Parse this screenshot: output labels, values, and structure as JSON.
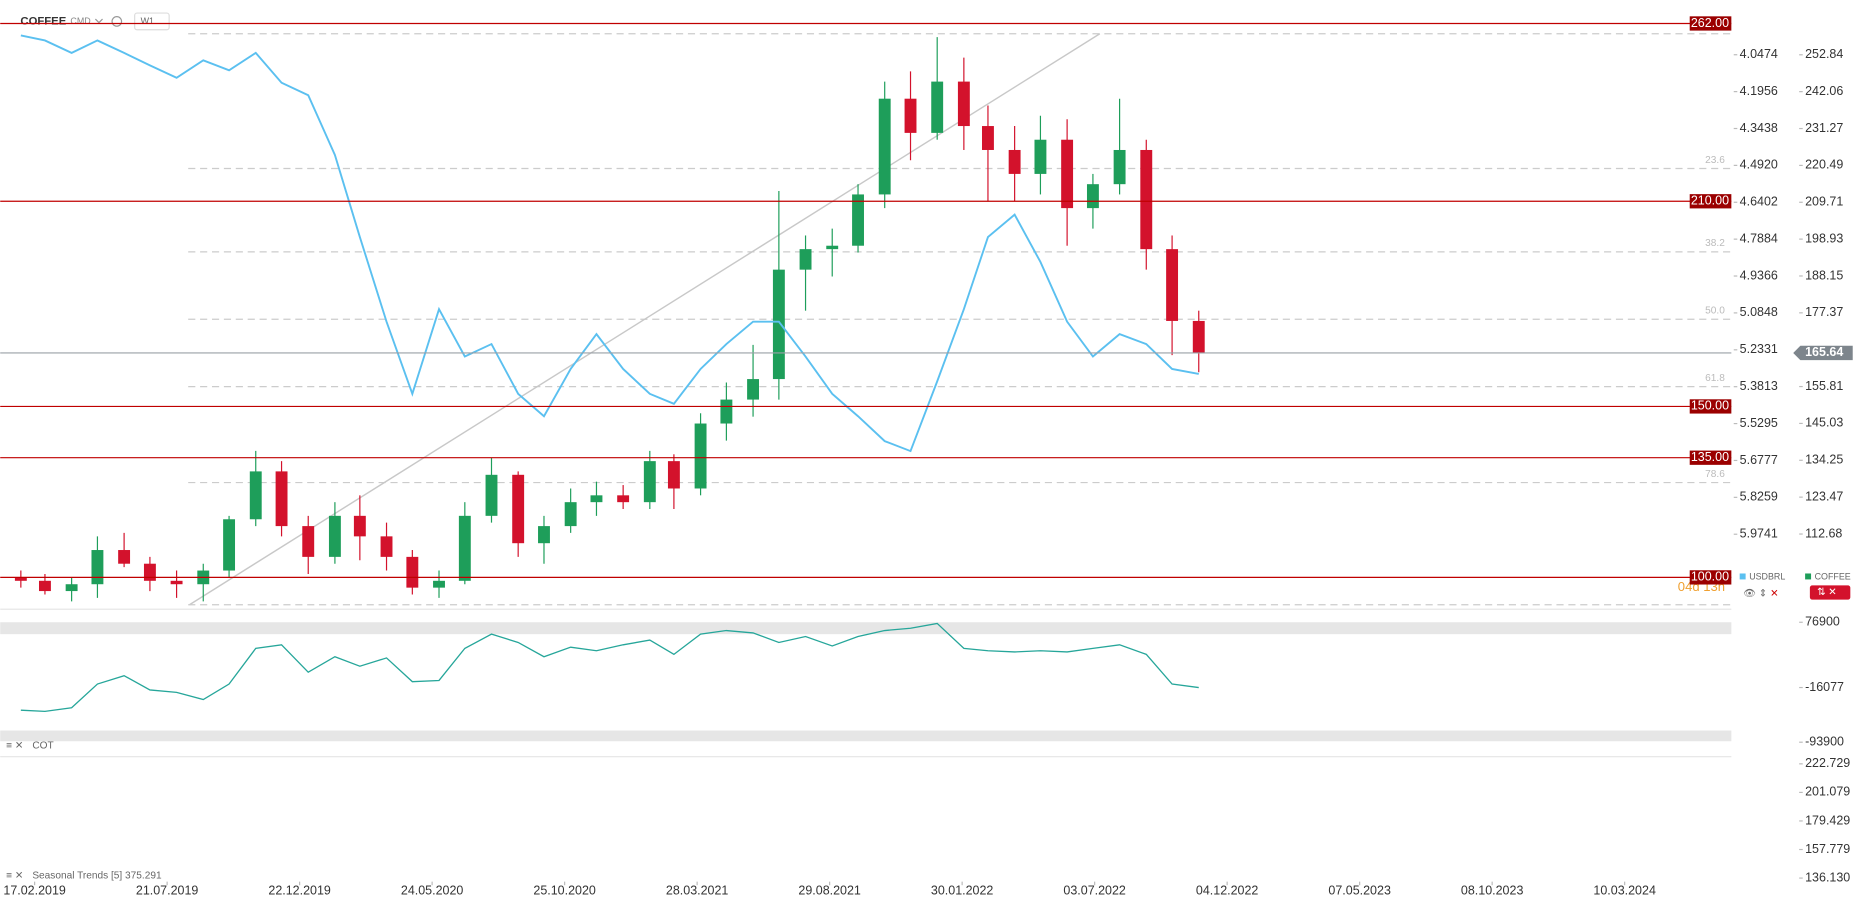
{
  "header": {
    "symbol": "COFFEE",
    "kind": "CMD",
    "timeframe": "W1",
    "countdown": "04d 13h"
  },
  "chart_data": [
    {
      "type": "candlestick",
      "x": [
        "01.02.2019",
        "01.03.2019",
        "01.04.2019",
        "01.05.2019",
        "01.06.2019",
        "01.07.2019",
        "01.08.2019",
        "01.09.2019",
        "01.10.2019",
        "01.11.2019",
        "01.12.2019",
        "01.01.2020",
        "01.02.2020",
        "01.03.2020",
        "01.04.2020",
        "01.05.2020",
        "01.06.2020",
        "01.07.2020",
        "01.08.2020",
        "01.09.2020",
        "01.10.2020",
        "01.11.2020",
        "01.12.2020",
        "01.01.2021",
        "01.02.2021",
        "01.03.2021",
        "01.04.2021",
        "01.05.2021",
        "01.06.2021",
        "01.07.2021",
        "01.08.2021",
        "01.09.2021",
        "01.10.2021",
        "01.11.2021",
        "01.12.2021",
        "01.01.2022",
        "01.02.2022",
        "01.03.2022",
        "01.04.2022",
        "01.05.2022",
        "01.06.2022",
        "01.07.2022",
        "01.08.2022",
        "01.09.2022",
        "01.10.2022",
        "01.11.2022"
      ],
      "xlim": [
        "08.01.2019",
        "12.07.2024"
      ],
      "xticks": [
        "17.02.2019",
        "21.07.2019",
        "22.12.2019",
        "24.05.2020",
        "25.10.2020",
        "28.03.2021",
        "29.08.2021",
        "30.01.2022",
        "03.07.2022",
        "04.12.2022",
        "07.05.2023",
        "08.10.2023",
        "10.03.2024"
      ],
      "series": [
        {
          "name": "COFFEE",
          "up_color": "#1e9e5a",
          "down_color": "#d3122c",
          "open": [
            100,
            99,
            96,
            98,
            108,
            104,
            99,
            98,
            102,
            117,
            131,
            115,
            106,
            118,
            112,
            106,
            97,
            99,
            118,
            130,
            110,
            115,
            122,
            124,
            122,
            134,
            126,
            145,
            152,
            158,
            190,
            196,
            197,
            212,
            240,
            230,
            245,
            232,
            225,
            218,
            228,
            208,
            215,
            225,
            196,
            175
          ],
          "high": [
            102,
            101,
            100,
            112,
            113,
            106,
            102,
            104,
            118,
            137,
            134,
            118,
            122,
            124,
            116,
            108,
            102,
            122,
            135,
            131,
            118,
            126,
            128,
            127,
            137,
            136,
            148,
            157,
            168,
            213,
            200,
            202,
            215,
            245,
            248,
            258,
            252,
            238,
            232,
            235,
            234,
            218,
            240,
            228,
            200,
            178
          ],
          "low": [
            97,
            95,
            93,
            94,
            103,
            96,
            94,
            93,
            100,
            115,
            112,
            101,
            104,
            105,
            102,
            95,
            94,
            98,
            116,
            106,
            104,
            113,
            118,
            120,
            120,
            120,
            124,
            140,
            147,
            152,
            178,
            188,
            195,
            208,
            222,
            228,
            225,
            210,
            210,
            212,
            197,
            202,
            212,
            190,
            165,
            160
          ],
          "close": [
            99,
            96,
            98,
            108,
            104,
            99,
            98,
            102,
            117,
            131,
            115,
            106,
            118,
            112,
            106,
            97,
            99,
            118,
            130,
            110,
            115,
            122,
            124,
            122,
            134,
            126,
            145,
            152,
            158,
            190,
            196,
            197,
            212,
            240,
            230,
            245,
            232,
            225,
            218,
            228,
            208,
            215,
            225,
            196,
            175,
            165.64
          ]
        },
        {
          "name": "USDBRL",
          "axis": "y2",
          "color": "#5bc0f0",
          "values": [
            3.97,
            3.99,
            4.04,
            3.99,
            4.04,
            4.09,
            4.14,
            4.07,
            4.11,
            4.04,
            4.16,
            4.21,
            4.45,
            4.78,
            5.12,
            5.41,
            5.07,
            5.26,
            5.21,
            5.41,
            5.5,
            5.31,
            5.17,
            5.31,
            5.41,
            5.45,
            5.31,
            5.21,
            5.12,
            5.12,
            5.26,
            5.41,
            5.5,
            5.6,
            5.64,
            5.36,
            5.07,
            4.78,
            4.69,
            4.88,
            5.12,
            5.26,
            5.17,
            5.21,
            5.31,
            5.33
          ]
        }
      ],
      "ylim": [
        91.4,
        262.6
      ],
      "yticks": [
        252.84,
        242.06,
        231.27,
        220.49,
        209.71,
        198.93,
        188.15,
        177.37,
        155.81,
        145.03,
        134.25,
        123.47,
        112.68
      ],
      "y2lim": [
        6.2657,
        3.9135
      ],
      "y2ticks": [
        4.0474,
        4.1956,
        4.3438,
        {
          "value": 4.492,
          "label": "4.4920"
        },
        4.6402,
        4.7884,
        4.9366,
        5.0848,
        5.2331,
        5.3813,
        5.5295,
        5.6777,
        5.8259,
        5.9741
      ],
      "levels": [
        {
          "value": 262,
          "label": "262.00"
        },
        {
          "value": 210,
          "label": "210.00"
        },
        {
          "value": 150,
          "label": "150.00"
        },
        {
          "value": 135,
          "label": "135.00"
        },
        {
          "value": 100,
          "label": "100.00"
        }
      ],
      "level_color": "#c00000",
      "last_price": 165.64,
      "fibonacci": {
        "from": 259,
        "to": 92,
        "levels": [
          23.6,
          38.2,
          {
            "value": 50,
            "label": "50.0"
          },
          61.8,
          78.6
        ]
      },
      "trendline": {
        "x": [
          "16.08.2019",
          "09.07.2022"
        ],
        "y": [
          92,
          259
        ]
      },
      "legend": "right"
    },
    {
      "type": "line",
      "name": "COT",
      "x": [
        "01.02.2019",
        "01.03.2019",
        "01.04.2019",
        "01.05.2019",
        "01.06.2019",
        "01.07.2019",
        "01.08.2019",
        "01.09.2019",
        "01.10.2019",
        "01.11.2019",
        "01.12.2019",
        "01.01.2020",
        "01.02.2020",
        "01.03.2020",
        "01.04.2020",
        "01.05.2020",
        "01.06.2020",
        "01.07.2020",
        "01.08.2020",
        "01.09.2020",
        "01.10.2020",
        "01.11.2020",
        "01.12.2020",
        "01.01.2021",
        "01.02.2021",
        "01.03.2021",
        "01.04.2021",
        "01.05.2021",
        "01.06.2021",
        "01.07.2021",
        "01.08.2021",
        "01.09.2021",
        "01.10.2021",
        "01.11.2021",
        "01.12.2021",
        "01.01.2022",
        "01.02.2022",
        "01.03.2022",
        "01.04.2022",
        "01.05.2022",
        "01.06.2022",
        "01.07.2022",
        "01.08.2022",
        "01.09.2022",
        "01.10.2022",
        "01.11.2022"
      ],
      "color": "#26a69a",
      "values": [
        -48300,
        -50000,
        -44900,
        -11100,
        800,
        -19500,
        -22900,
        -33100,
        -11100,
        39700,
        44800,
        5800,
        27800,
        14300,
        26100,
        -7700,
        -6000,
        39700,
        60000,
        48100,
        27800,
        41400,
        36300,
        44800,
        51500,
        31200,
        60000,
        65100,
        61700,
        48100,
        56600,
        43100,
        56600,
        65100,
        68400,
        75200,
        39700,
        36300,
        34600,
        36300,
        34600,
        39700,
        44800,
        31200,
        -11100,
        -16077
      ],
      "ylim": [
        -101000,
        87050
      ],
      "yticks": [
        76900,
        -16077,
        -93900
      ]
    },
    {
      "type": "line",
      "name": "Seasonal Trends [5] 375.291",
      "ylim": [
        130.72,
        228.14
      ],
      "yticks": [
        222.729,
        201.079,
        179.429,
        157.779,
        {
          "value": 136.13,
          "label": "136.130"
        }
      ]
    }
  ]
}
